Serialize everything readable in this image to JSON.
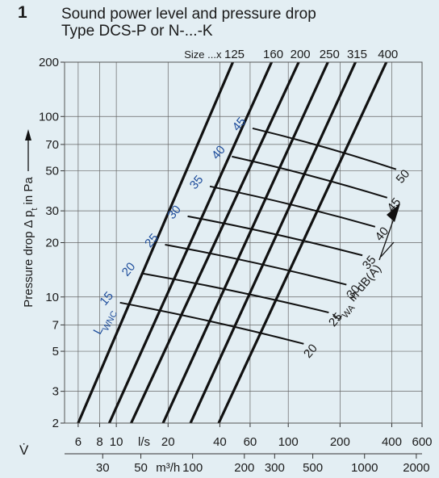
{
  "figure": {
    "number": "1",
    "title_line1": "Sound power level and pressure drop",
    "title_line2": "Type DCS-P or N-...-K"
  },
  "colors": {
    "background": "#e3eef3",
    "lines": "#111111",
    "lwnc_labels": "#1f4e9c",
    "text": "#1a1a1a"
  },
  "chart_data": {
    "type": "line",
    "scale": "log-log",
    "ylabel": "Pressure drop Δ p",
    "ylabel_sub": "t",
    "ylabel_unit": " in Pa",
    "ylim": [
      2,
      200
    ],
    "y_ticks": [
      "2",
      "3",
      "5",
      "7",
      "10",
      "20",
      "30",
      "50",
      "70",
      "100",
      "200"
    ],
    "y_tick_values": [
      2,
      3,
      5,
      7,
      10,
      20,
      30,
      50,
      70,
      100,
      200
    ],
    "x_symbol": "V̇",
    "xlim_ls": [
      5,
      600
    ],
    "x_axis_ls": {
      "unit": "l/s",
      "ticks": [
        "6",
        "8",
        "10",
        "20",
        "40",
        "60",
        "100",
        "200",
        "400",
        "600"
      ],
      "values": [
        6,
        8,
        10,
        20,
        40,
        60,
        100,
        200,
        400,
        600
      ]
    },
    "x_axis_m3h": {
      "unit": "m³/h",
      "ticks": [
        "30",
        "50",
        "100",
        "200",
        "300",
        "500",
        "1000",
        "2000"
      ],
      "values": [
        30,
        50,
        100,
        200,
        300,
        500,
        1000,
        2000
      ]
    },
    "size_prefix": "Size ...x",
    "size_series": [
      {
        "name": "125",
        "points": [
          [
            6,
            2
          ],
          [
            47.6,
            200
          ]
        ]
      },
      {
        "name": "160",
        "points": [
          [
            9.1,
            2
          ],
          [
            80,
            200
          ]
        ]
      },
      {
        "name": "200",
        "points": [
          [
            12.2,
            2
          ],
          [
            115,
            200
          ]
        ]
      },
      {
        "name": "250",
        "points": [
          [
            18.7,
            2
          ],
          [
            170,
            200
          ]
        ]
      },
      {
        "name": "315",
        "points": [
          [
            27,
            2
          ],
          [
            246,
            200
          ]
        ]
      },
      {
        "name": "400",
        "points": [
          [
            39.4,
            2
          ],
          [
            372,
            200
          ]
        ]
      }
    ],
    "lwnc_label": "L WNC",
    "lwnc_levels": [
      {
        "name": "15",
        "points": [
          [
            10.5,
            9.3
          ],
          [
            123,
            5.5
          ]
        ]
      },
      {
        "name": "20",
        "points": [
          [
            14.1,
            13.5
          ],
          [
            172,
            8.2
          ]
        ]
      },
      {
        "name": "25",
        "points": [
          [
            19.2,
            19.5
          ],
          [
            218,
            11.7
          ]
        ]
      },
      {
        "name": "30",
        "points": [
          [
            26,
            28
          ],
          [
            270,
            17
          ]
        ]
      },
      {
        "name": "35",
        "points": [
          [
            35,
            41
          ],
          [
            320,
            24.5
          ]
        ]
      },
      {
        "name": "40",
        "points": [
          [
            47,
            60
          ],
          [
            376,
            35.5
          ]
        ]
      },
      {
        "name": "45",
        "points": [
          [
            62,
            86
          ],
          [
            424,
            51
          ]
        ]
      }
    ],
    "lwa_label": "L WA in dB(A)",
    "lwa_levels": [
      "20",
      "25",
      "30",
      "35",
      "40",
      "45",
      "50"
    ]
  }
}
